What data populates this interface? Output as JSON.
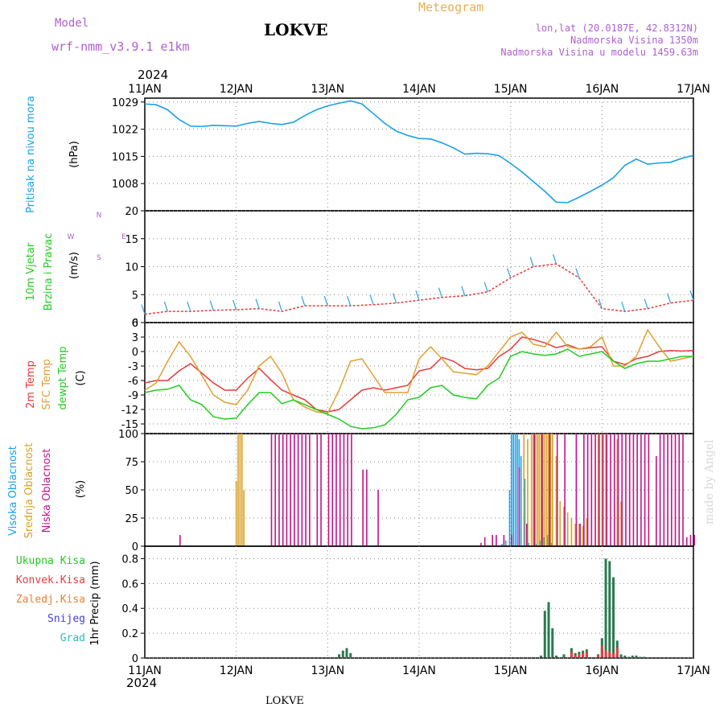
{
  "header": {
    "model_label": "Model",
    "model_name": "wrf-nmm_v3.9.1 e1km",
    "station": "LOKVE",
    "product": "Meteogram",
    "lonlat": "lon,lat (20.0187E, 42.8312N)",
    "altitude": "Nadmorska Visina 1350m",
    "model_altitude": "Nadmorska Visina u modelu 1459.63m",
    "year_top": "2024",
    "year_bottom": "2024",
    "footer_station": "LOKVE",
    "credit": "made by Angel"
  },
  "colors": {
    "pressure": "#1aa0e8",
    "t2m": "#e83c3c",
    "sfc": "#e0a030",
    "dewpt": "#22cc22",
    "cloud_high": "#1aa0e8",
    "cloud_mid": "#d8a028",
    "cloud_low": "#c0148c",
    "precip_total": "#2a7a50",
    "precip_conv": "#e83c3c",
    "precip_frz": "#f08030",
    "snow": "#4040e0",
    "grad": "#20c0c0",
    "model_label": "#b060d0",
    "product_label": "#e8b050"
  },
  "chart_data": [
    {
      "type": "line",
      "panel": "pressure",
      "title": "",
      "ylabel_lines": [
        "Pritisak na nivou mora",
        "(hPa)"
      ],
      "ylim": [
        1001,
        1030
      ],
      "yticks": [
        "1008",
        "1015",
        "1022",
        "1029"
      ],
      "x_ticks": [
        "11JAN",
        "12JAN",
        "13JAN",
        "14JAN",
        "15JAN",
        "16JAN",
        "17JAN"
      ],
      "x_range_hours": [
        0,
        144
      ],
      "grid": true,
      "series": [
        {
          "x": [
            0,
            3,
            6,
            9,
            12,
            15,
            18,
            21,
            24,
            27,
            30,
            33,
            36,
            39,
            42,
            45,
            48,
            51,
            54,
            57,
            60,
            63,
            66,
            69,
            72,
            75,
            78,
            81,
            84,
            87,
            90,
            93,
            96,
            99,
            102,
            105,
            108,
            111,
            114,
            117,
            120,
            123,
            126,
            129,
            132,
            135,
            138,
            141,
            144
          ],
          "values": [
            1028.5,
            1028.3,
            1027,
            1024.5,
            1022.8,
            1022.7,
            1023,
            1022.9,
            1022.8,
            1023.5,
            1024,
            1023.5,
            1023.2,
            1023.8,
            1025.5,
            1027,
            1028,
            1028.7,
            1029.3,
            1028.5,
            1026,
            1023.5,
            1021.5,
            1020.4,
            1019.6,
            1019.5,
            1018.5,
            1017.2,
            1015.6,
            1015.8,
            1015.7,
            1015.2,
            1013.2,
            1011,
            1008.5,
            1006,
            1003.2,
            1003.1,
            1004.5,
            1006,
            1007.6,
            1009.5,
            1012.7,
            1014.3,
            1013,
            1013.3,
            1013.5,
            1014.5,
            1015.3
          ]
        }
      ]
    },
    {
      "type": "scatter",
      "panel": "wind",
      "title": "",
      "ylabel_lines": [
        "10m Vjetar",
        "Brzina i Pravac",
        "(m/s)"
      ],
      "direction_legend": [
        "N",
        "W",
        "E",
        "S"
      ],
      "ylim": [
        0,
        20
      ],
      "yticks": [
        "0",
        "5",
        "10",
        "15",
        "20"
      ],
      "grid": true,
      "series": [
        {
          "name": "speed",
          "x": [
            0,
            6,
            12,
            18,
            24,
            30,
            36,
            42,
            48,
            54,
            60,
            66,
            72,
            78,
            84,
            90,
            96,
            102,
            108,
            114,
            120,
            126,
            132,
            138,
            144
          ],
          "values": [
            1.5,
            2,
            2,
            2.2,
            2.3,
            2.5,
            2,
            3,
            3,
            3,
            3.2,
            3.5,
            4,
            4.5,
            4.8,
            5.5,
            8,
            10,
            10.5,
            8,
            2.5,
            2,
            2.5,
            3.5,
            4
          ]
        }
      ]
    },
    {
      "type": "line",
      "panel": "temperature",
      "title": "",
      "ylabel_lines": [
        "2m Temp",
        "SFC Temp",
        "dewpt Temp",
        "(C)"
      ],
      "ylim": [
        -17,
        6
      ],
      "yticks": [
        "-15",
        "-12",
        "-9",
        "-6",
        "-3",
        "0",
        "3",
        "6"
      ],
      "grid": true,
      "x": [
        0,
        3,
        6,
        9,
        12,
        15,
        18,
        21,
        24,
        27,
        30,
        33,
        36,
        39,
        42,
        45,
        48,
        51,
        54,
        57,
        60,
        63,
        66,
        69,
        72,
        75,
        78,
        81,
        84,
        87,
        90,
        93,
        96,
        99,
        102,
        105,
        108,
        111,
        114,
        117,
        120,
        123,
        126,
        129,
        132,
        135,
        138,
        141,
        144
      ],
      "series": [
        {
          "name": "2m Temp",
          "values": [
            -6.5,
            -6,
            -6,
            -4,
            -2.5,
            -4.5,
            -6.5,
            -8,
            -8,
            -5.5,
            -3.5,
            -5.8,
            -8,
            -9,
            -10,
            -12,
            -12.5,
            -12,
            -10,
            -8,
            -7.5,
            -8,
            -7.5,
            -7,
            -4,
            -3.5,
            -1.2,
            -2,
            -3.5,
            -3.8,
            -3.5,
            -1,
            0.5,
            3,
            2.5,
            1.8,
            0.8,
            1.4,
            0.5,
            0.8,
            1,
            -2,
            -2.7,
            -1.5,
            -1,
            0,
            0.2,
            0.1,
            0.2
          ]
        },
        {
          "name": "SFC Temp",
          "values": [
            -8,
            -6.5,
            -2,
            2,
            -1,
            -5,
            -9,
            -10.5,
            -11,
            -8,
            -3,
            -1,
            -4.5,
            -10,
            -11.5,
            -12.5,
            -12.8,
            -8,
            -2,
            -1.5,
            -5,
            -8.5,
            -8.5,
            -8.5,
            -1.5,
            1,
            -1.5,
            -4.2,
            -4.5,
            -4.8,
            -3,
            0,
            3,
            4,
            1.5,
            1,
            4,
            1,
            0.5,
            1,
            3,
            -3,
            -3,
            -1,
            4.5,
            1,
            -2,
            -1.5,
            -1
          ]
        },
        {
          "name": "dewpt Temp",
          "values": [
            -8.5,
            -8,
            -7.8,
            -7,
            -10,
            -11,
            -13.5,
            -14,
            -13.8,
            -11,
            -8.5,
            -8.5,
            -10.8,
            -10,
            -11,
            -12,
            -13,
            -14,
            -15.5,
            -16,
            -15.8,
            -15.2,
            -13,
            -10,
            -9.5,
            -7.5,
            -7,
            -9,
            -9.5,
            -9.8,
            -7,
            -5.5,
            -1,
            0,
            -0.5,
            -0.8,
            -0.5,
            0.5,
            -1,
            -0.5,
            0,
            -2,
            -3.5,
            -2.5,
            -2,
            -2,
            -1.5,
            -1,
            -1
          ]
        }
      ]
    },
    {
      "type": "bar",
      "panel": "clouds",
      "title": "",
      "ylabel_lines": [
        "Visoka Oblacnost",
        "Srednja Oblacnost",
        "Niska Oblacnost",
        "(%)"
      ],
      "ylim": [
        0,
        100
      ],
      "yticks": [
        "0",
        "25",
        "50",
        "75",
        "100"
      ],
      "grid": true,
      "series": [
        {
          "name": "Visoka Oblacnost",
          "x": [
            94,
            95,
            96,
            96.5,
            97,
            97.5,
            98,
            98.5,
            99,
            100,
            101,
            103,
            104,
            105,
            106,
            107
          ],
          "values": [
            2,
            5,
            50,
            100,
            100,
            100,
            100,
            95,
            80,
            60,
            3,
            2,
            5,
            8,
            10,
            3
          ]
        },
        {
          "name": "Srednja Oblacnost",
          "x": [
            24,
            24.5,
            25,
            25.5,
            26,
            99.5,
            100.5,
            101.5,
            102,
            102.5,
            103,
            103.5,
            104,
            104.5,
            105,
            105.5,
            106,
            106.5,
            107,
            108,
            109,
            110,
            111,
            112,
            113,
            114,
            115,
            116,
            119,
            120,
            121,
            124,
            125
          ],
          "values": [
            58,
            100,
            100,
            100,
            50,
            100,
            95,
            100,
            100,
            100,
            100,
            100,
            100,
            100,
            100,
            100,
            100,
            100,
            100,
            80,
            40,
            35,
            30,
            25,
            20,
            20,
            18,
            25,
            100,
            100,
            100,
            95,
            40
          ]
        },
        {
          "name": "Niska Oblacnost",
          "x": [
            9,
            33,
            34,
            35,
            36,
            37,
            38,
            39,
            40,
            41,
            42,
            43,
            45,
            46,
            48,
            49,
            50,
            51,
            52,
            53,
            54,
            57,
            58,
            61,
            88,
            89,
            91,
            92,
            94,
            96,
            98,
            100,
            102,
            104,
            106,
            108,
            110,
            113,
            114,
            115,
            116,
            117,
            118,
            119,
            120,
            121,
            122,
            123,
            124,
            125,
            126,
            127,
            128,
            129,
            130,
            131,
            132,
            134,
            135,
            136,
            137,
            138,
            139,
            140,
            141,
            142,
            143,
            144
          ],
          "values": [
            10,
            100,
            100,
            100,
            100,
            100,
            100,
            100,
            100,
            100,
            100,
            100,
            100,
            100,
            100,
            100,
            100,
            100,
            100,
            100,
            100,
            68,
            68,
            50,
            3,
            8,
            10,
            10,
            10,
            10,
            70,
            20,
            100,
            100,
            100,
            100,
            100,
            100,
            20,
            100,
            100,
            100,
            100,
            100,
            100,
            100,
            100,
            100,
            100,
            100,
            100,
            100,
            100,
            100,
            100,
            100,
            100,
            80,
            100,
            100,
            100,
            100,
            100,
            100,
            100,
            8,
            10,
            10
          ]
        }
      ]
    },
    {
      "type": "bar",
      "panel": "precip",
      "title": "",
      "ylabel_lines": [
        "1hr Precip (mm)"
      ],
      "legend_labels": [
        "Ukupna Kisa",
        "Konvek.Kisa",
        "Zaledj.Kisa",
        "Snijeg",
        "Grad"
      ],
      "ylim": [
        0,
        0.9
      ],
      "yticks": [
        "0",
        "0.2",
        "0.4",
        "0.6",
        "0.8"
      ],
      "grid": true,
      "series": [
        {
          "name": "Ukupna Kisa",
          "x": [
            51,
            52,
            53,
            54,
            104,
            105,
            106,
            107,
            108,
            110,
            112,
            113,
            114,
            115,
            116,
            119,
            120,
            121,
            122,
            123,
            124,
            125,
            126,
            127,
            128,
            129,
            130,
            131
          ],
          "values": [
            0.03,
            0.06,
            0.08,
            0.04,
            0.02,
            0.38,
            0.45,
            0.24,
            0.02,
            0.03,
            0.08,
            0.04,
            0.05,
            0.06,
            0.07,
            0.03,
            0.16,
            0.8,
            0.78,
            0.65,
            0.14,
            0.03,
            0.02,
            0.01,
            0.02,
            0.02,
            0.01,
            0.01
          ]
        },
        {
          "name": "Konvek.Kisa",
          "x": [
            112,
            113,
            114,
            115,
            116,
            119,
            120,
            121,
            122,
            123,
            124
          ],
          "values": [
            0.05,
            0.02,
            0.03,
            0.04,
            0.05,
            0.02,
            0.1,
            0.06,
            0.05,
            0.04,
            0.08
          ]
        }
      ]
    }
  ]
}
